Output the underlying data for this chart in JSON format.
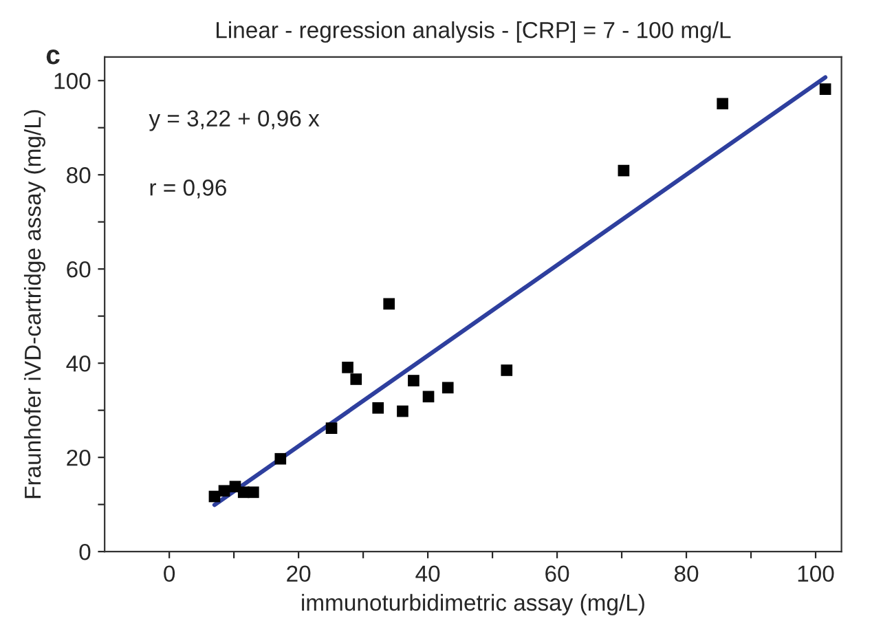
{
  "chart_data": {
    "type": "scatter",
    "title": "Linear - regression analysis - [CRP] = 7 - 100 mg/L",
    "xlabel": "immunoturbidimetric assay (mg/L)",
    "ylabel": "Fraunhofer iVD-cartridge assay (mg/L)",
    "annotations": [
      "c",
      "y = 3,22 + 0,96 x",
      "r = 0,96"
    ],
    "grid": false,
    "legend": false,
    "xlim": [
      -10,
      104
    ],
    "ylim": [
      0,
      105
    ],
    "xticks": [
      0,
      {
        "value": 10,
        "label": null
      },
      20,
      {
        "value": 30,
        "label": null
      },
      40,
      {
        "value": 50,
        "label": null
      },
      60,
      {
        "value": 70,
        "label": null
      },
      80,
      {
        "value": 90,
        "label": null
      },
      100
    ],
    "yticks": [
      0,
      {
        "value": 10,
        "label": null
      },
      20,
      {
        "value": 30,
        "label": null
      },
      40,
      {
        "value": 50,
        "label": null
      },
      60,
      {
        "value": 70,
        "label": null
      },
      80,
      {
        "value": 90,
        "label": null
      },
      100
    ],
    "series": [
      {
        "marker": "square",
        "color": "#000000",
        "x": [
          7.0,
          8.5,
          10.2,
          11.5,
          13.0,
          17.2,
          25.1,
          27.6,
          28.9,
          32.3,
          36.1,
          37.8,
          40.1,
          43.1,
          34.0,
          52.2,
          70.3,
          85.6,
          101.5
        ],
        "values": [
          11.7,
          12.9,
          13.8,
          12.6,
          12.6,
          19.7,
          26.2,
          39.1,
          36.6,
          30.5,
          29.8,
          36.3,
          32.9,
          34.8,
          52.6,
          38.5,
          80.9,
          95.1,
          98.2
        ]
      },
      {
        "type": "line",
        "color": "#2e3f9e",
        "marker": "none",
        "line_style": "solid",
        "x": [
          7.0,
          101.5
        ],
        "values": [
          9.9,
          100.7
        ]
      }
    ]
  }
}
